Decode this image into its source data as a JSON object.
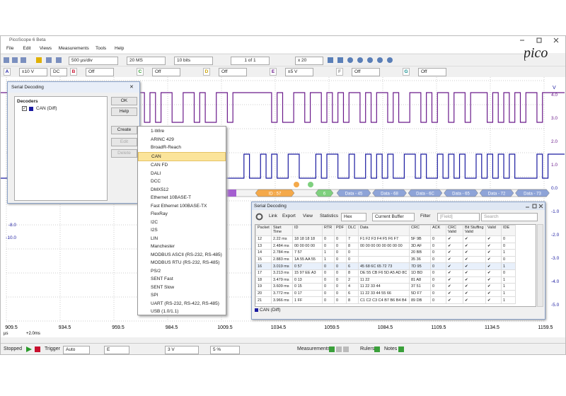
{
  "window": {
    "title": "PicoScope 6 Beta",
    "logo": "pico"
  },
  "menu": [
    "File",
    "Edit",
    "Views",
    "Measurements",
    "Tools",
    "Help"
  ],
  "toolbar": {
    "timebase": "500 µs/div",
    "samples": "20 MS",
    "resolution": "10 bits",
    "buffer": "1 of 1",
    "zoom": "x 20"
  },
  "channels": [
    {
      "name": "A",
      "range": "±10 V",
      "coupling": "DC"
    },
    {
      "name": "B",
      "range": "Off"
    },
    {
      "name": "C",
      "range": "Off"
    },
    {
      "name": "D",
      "range": "Off"
    },
    {
      "name": "E",
      "range": "±5 V"
    },
    {
      "name": "F",
      "range": "Off"
    },
    {
      "name": "G",
      "range": "Off"
    }
  ],
  "scope": {
    "y_unit": "V",
    "right_ticks": [
      "4.0",
      "3.0",
      "2.0",
      "1.0",
      "0.0",
      "-1.0",
      "-2.0",
      "-3.0",
      "-4.0",
      "-5.0"
    ],
    "left_ticks": [
      "-8.0",
      "-10.0"
    ],
    "x_ticks": [
      "909.5",
      "934.5",
      "959.5",
      "984.5",
      "1009.5",
      "1034.5",
      "1059.5",
      "1084.5",
      "1109.5",
      "1134.5",
      "1159.5"
    ],
    "x_unit": "µs",
    "offset": "+2.0ms"
  },
  "decode_bar": [
    "ID : 57",
    "6",
    "Data - 45",
    "Data - 68",
    "Data - 6C",
    "Data - 65",
    "Data - 72",
    "Data - 73"
  ],
  "dialog": {
    "title": "Serial Decoding",
    "close": "✕",
    "decoders_label": "Decoders",
    "decoder": "CAN (Diff)",
    "buttons": [
      "OK",
      "Help",
      "Create",
      "Edit",
      "Delete"
    ]
  },
  "protocols": {
    "selected": 3,
    "items": [
      "1-Wire",
      "ARINC 429",
      "BroadR-Reach",
      "CAN",
      "CAN FD",
      "DALI",
      "DCC",
      "DMX512",
      "Ethernet 10BASE-T",
      "Fast Ethernet 100BASE-TX",
      "FlexRay",
      "I2C",
      "I2S",
      "LIN",
      "Manchester",
      "MODBUS ASCII (RS-232, RS-485)",
      "MODBUS RTU (RS-232, RS-485)",
      "PS/2",
      "SENT Fast",
      "SENT Slow",
      "SPI",
      "UART (RS-232, RS-422, RS-485)",
      "USB (1.0/1.1)"
    ]
  },
  "table_window": {
    "title": "Serial Decoding",
    "toolbar": [
      "Link",
      "Export",
      "View",
      "Statistics",
      "Hex",
      "Current Buffer",
      "Filter",
      "[Field]",
      "Search"
    ],
    "columns": [
      "Packet",
      "Start Time",
      "ID",
      "RTR",
      "PDF",
      "DLC",
      "Data",
      "CRC",
      "ACK",
      "CRC Valid",
      "Bit Stuffing Valid",
      "Valid",
      "IDE"
    ],
    "rows": [
      [
        "12",
        "2.22 ms",
        "18 18 18 18",
        "0",
        "0",
        "7",
        "F1 F2 F3 F4 F5 F6 F7",
        "5F 9B",
        "0",
        "✔",
        "✔",
        "✔",
        "0"
      ],
      [
        "13",
        "2.484 ms",
        "00 00 00 00",
        "0",
        "0",
        "8",
        "00 00 00 00 00 00 00 00",
        "3D AF",
        "0",
        "✔",
        "✔",
        "✔",
        "0"
      ],
      [
        "14",
        "2.784 ms",
        "7 57",
        "1",
        "0",
        "0",
        null,
        "20 BB",
        "0",
        "✔",
        "✔",
        "✔",
        "1"
      ],
      [
        "15",
        "2.883 ms",
        "1A 55 AA 55",
        "1",
        "0",
        "0",
        null,
        "35 36",
        "0",
        "✔",
        "✔",
        "✔",
        "0"
      ],
      [
        "16",
        "3.019 ms",
        "0 57",
        "0",
        "0",
        "6",
        "45 68 6C 65 72 73",
        "7D 95",
        "0",
        "✔",
        "✔",
        "✔",
        "1"
      ],
      [
        "17",
        "3.213 ms",
        "15 97 EE A3",
        "0",
        "0",
        "8",
        "DE 55 CB F6 5D A5 AD 8C",
        "1D BD",
        "0",
        "✔",
        "✔",
        "✔",
        "0"
      ],
      [
        "18",
        "3.479 ms",
        "0 13",
        "0",
        "0",
        "2",
        "11 22",
        "81 A8",
        "0",
        "✔",
        "✔",
        "✔",
        "1"
      ],
      [
        "19",
        "3.609 ms",
        "0 15",
        "0",
        "0",
        "4",
        "11 22 33 44",
        "37 51",
        "0",
        "✔",
        "✔",
        "✔",
        "1"
      ],
      [
        "20",
        "3.772 ms",
        "0 17",
        "0",
        "0",
        "6",
        "11 22 33 44 55 66",
        "5D F7",
        "0",
        "✔",
        "✔",
        "✔",
        "1"
      ],
      [
        "21",
        "3.966 ms",
        "1 FF",
        "0",
        "0",
        "8",
        "C1 C2 C3 C4 B7 B6 B4 B4",
        "89 DB",
        "0",
        "✔",
        "✔",
        "✔",
        "1"
      ]
    ],
    "footer": "CAN (Diff)"
  },
  "status": {
    "state": "Stopped",
    "trigger_label": "Trigger",
    "trigger_mode": "Auto",
    "trigger_channel": "E",
    "threshold": "3 V",
    "pre_trigger": "5 %",
    "measurements": "Measurements",
    "rulers": "Rulers",
    "notes": "Notes"
  }
}
